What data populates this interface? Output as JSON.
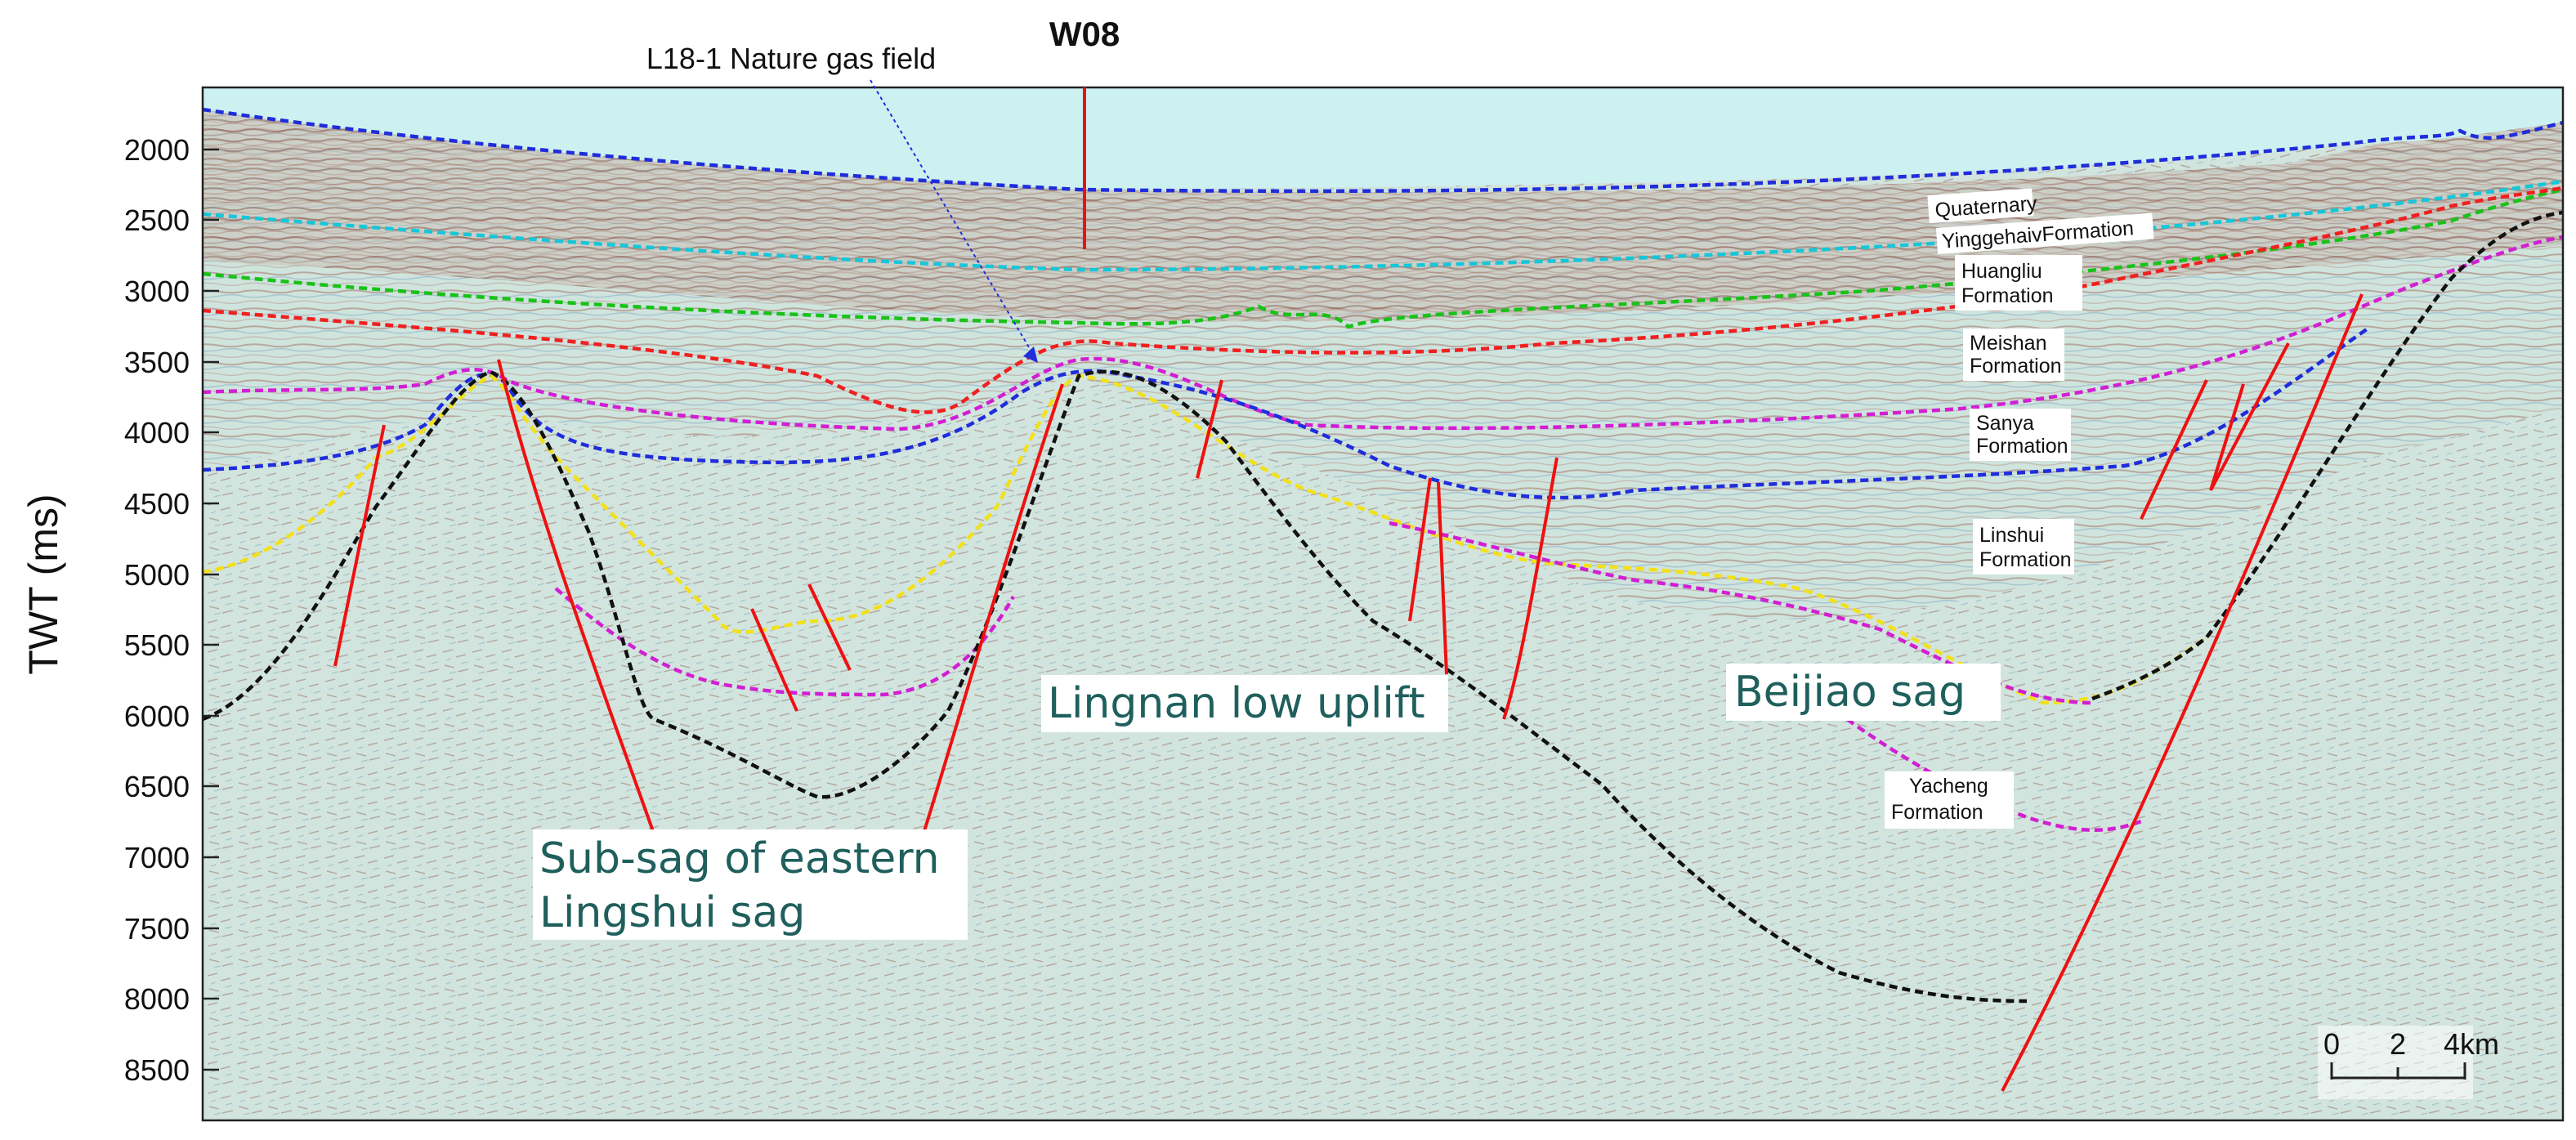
{
  "axis": {
    "title": "TWT (ms)",
    "ticks": [
      "2000",
      "2500",
      "3000",
      "3500",
      "4000",
      "4500",
      "5000",
      "5500",
      "6000",
      "6500",
      "7000",
      "7500",
      "8000",
      "8500"
    ]
  },
  "well": {
    "label": "W08"
  },
  "callout": {
    "label": "L18-1 Nature gas field"
  },
  "formations": {
    "quaternary": "Quaternary",
    "yinggehai": "YinggehaivFormation",
    "huangliu_1": "Huangliu",
    "huangliu_2": "Formation",
    "meishan_1": "Meishan",
    "meishan_2": "Formation",
    "sanya_1": "Sanya",
    "sanya_2": "Formation",
    "linshui_1": "Linshui",
    "linshui_2": "Formation",
    "yacheng_1": "Yacheng",
    "yacheng_2": "Formation"
  },
  "structures": {
    "lingnan": "Lingnan low uplift",
    "beijiao": "Beijiao sag",
    "subsag_1": "Sub-sag of eastern",
    "subsag_2": "Lingshui sag"
  },
  "scale": {
    "l0": "0",
    "l2": "2",
    "l4": "4km"
  },
  "colors": {
    "sea": "#cdf1f1",
    "seismic_bg": "#cde3dc",
    "quaternary_base": "#1f2ddb",
    "yinggehai_base": "#16c6d9",
    "huangliu_base": "#19c219",
    "meishan_base": "#f02020",
    "sanya_base": "#d21fd2",
    "linshui_base": "#1f2ddb",
    "yacheng_top": "#f2e11a",
    "basement": "#111111",
    "fault": "#ee1111",
    "label_text": "#1f5f5c"
  }
}
